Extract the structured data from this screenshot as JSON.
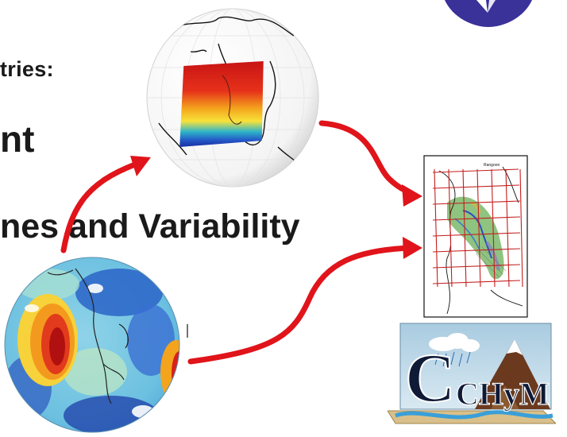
{
  "slide": {
    "line1": "tries:",
    "line2": "nt",
    "line3": "nes and Variability",
    "map_title": "Rangoon"
  },
  "colors": {
    "arrow": "#e0141a",
    "text": "#1a1a1a",
    "logo": "#3a3199",
    "grid": "#c41e1e"
  },
  "icons": {
    "regional_globe": "globe-regional-model-icon",
    "global_globe": "globe-global-model-icon",
    "basin_map": "basin-grid-map-icon",
    "chym_logo": "chym-hydrological-model-logo",
    "institution_logo": "institution-logo"
  },
  "chym_logo": {
    "text": "CHyM"
  }
}
